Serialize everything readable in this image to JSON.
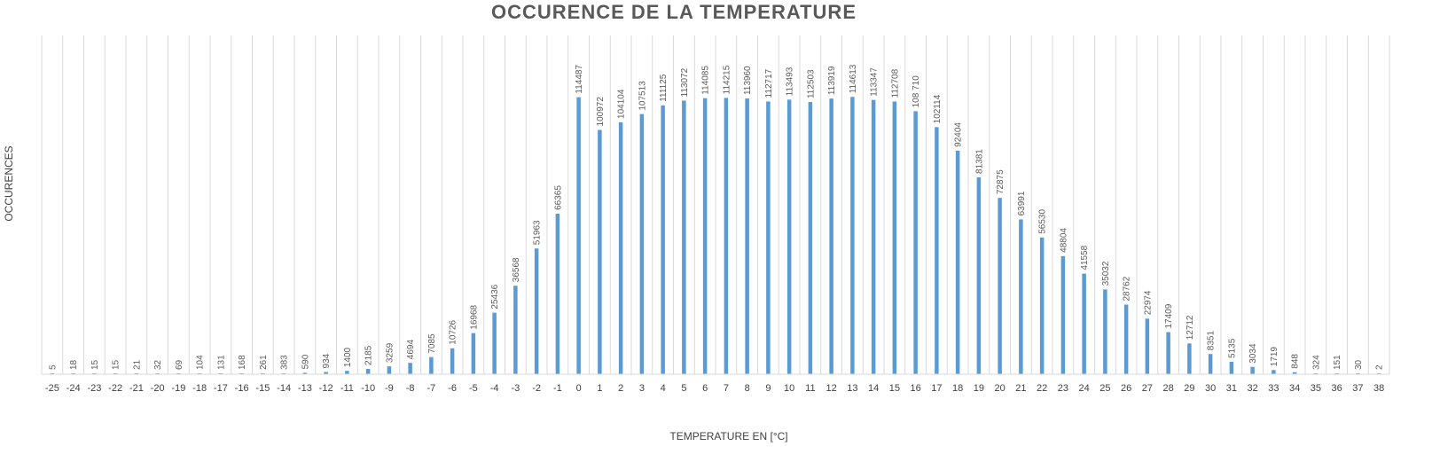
{
  "chart_data": {
    "type": "bar",
    "title": "OCCURENCE DE LA TEMPERATURE",
    "xlabel": "TEMPERATURE EN [°C]",
    "ylabel": "OCCURENCES",
    "categories": [
      "-25",
      "-24",
      "-23",
      "-22",
      "-21",
      "-20",
      "-19",
      "-18",
      "-17",
      "-16",
      "-15",
      "-14",
      "-13",
      "-12",
      "-11",
      "-10",
      "-9",
      "-8",
      "-7",
      "-6",
      "-5",
      "-4",
      "-3",
      "-2",
      "-1",
      "0",
      "1",
      "2",
      "3",
      "4",
      "5",
      "6",
      "7",
      "8",
      "9",
      "10",
      "11",
      "12",
      "13",
      "14",
      "15",
      "16",
      "17",
      "18",
      "19",
      "20",
      "21",
      "22",
      "23",
      "24",
      "25",
      "26",
      "27",
      "28",
      "29",
      "30",
      "31",
      "32",
      "33",
      "34",
      "35",
      "36",
      "37",
      "38"
    ],
    "values": [
      5,
      18,
      15,
      15,
      21,
      32,
      69,
      104,
      131,
      168,
      261,
      383,
      590,
      934,
      1400,
      2185,
      3259,
      4694,
      7085,
      10726,
      16968,
      25436,
      36568,
      51963,
      66365,
      114487,
      100972,
      104104,
      107513,
      111125,
      113072,
      114085,
      114215,
      113960,
      112717,
      113493,
      112503,
      113919,
      114613,
      113347,
      112708,
      108710,
      102114,
      92404,
      81381,
      72875,
      63991,
      56530,
      48804,
      41558,
      35032,
      28762,
      22974,
      17409,
      12712,
      8351,
      5135,
      3034,
      1719,
      848,
      324,
      151,
      30,
      2
    ],
    "data_labels": [
      "5",
      "18",
      "15",
      "15",
      "21",
      "32",
      "69",
      "104",
      "131",
      "168",
      "261",
      "383",
      "590",
      "934",
      "1400",
      "2185",
      "3259",
      "4694",
      "7085",
      "10726",
      "16968",
      "25436",
      "36568",
      "51963",
      "66365",
      "114487",
      "100972",
      "104104",
      "107513",
      "111125",
      "113072",
      "114085",
      "114215",
      "113960",
      "112717",
      "113493",
      "112503",
      "113919",
      "114613",
      "113347",
      "112708",
      "108 710",
      "102114",
      "92404",
      "81381",
      "72875",
      "63991",
      "56530",
      "48804",
      "41558",
      "35032",
      "28762",
      "22974",
      "17409",
      "12712",
      "8351",
      "5135",
      "3034",
      "1719",
      "848",
      "324",
      "151",
      "30",
      "2"
    ],
    "ylim": [
      0,
      140000
    ],
    "grid": "vertical",
    "legend": "none",
    "bar_color": "#5B9BD5"
  }
}
